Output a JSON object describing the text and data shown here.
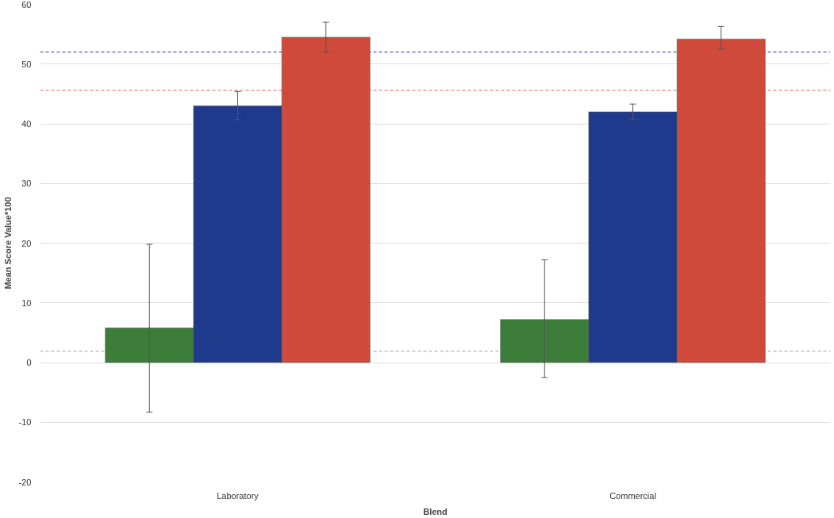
{
  "chart_data": {
    "type": "bar",
    "xlabel": "Blend",
    "ylabel": "Mean Score Value*100",
    "categories": [
      "Laboratory",
      "Commercial"
    ],
    "series": [
      {
        "color": "#3d7d3a",
        "values": [
          5.8,
          7.2
        ],
        "errors": [
          [
            -8.3,
            19.8
          ],
          [
            -2.5,
            17.2
          ]
        ]
      },
      {
        "color": "#1f3a8c",
        "values": [
          43.0,
          42.0
        ],
        "errors": [
          [
            40.7,
            45.4
          ],
          [
            40.7,
            43.3
          ]
        ]
      },
      {
        "color": "#cf4a3a",
        "values": [
          54.5,
          54.2
        ],
        "errors": [
          [
            52.0,
            57.0
          ],
          [
            52.5,
            56.3
          ]
        ]
      }
    ],
    "ref_lines": [
      {
        "axis": "y",
        "value": 52,
        "color": "#5a5aa0",
        "line_style": "dashed"
      },
      {
        "axis": "y",
        "value": 45.6,
        "color": "#e08080",
        "line_style": "dashed"
      },
      {
        "axis": "y",
        "value": 1.9,
        "color": "#b0b0b0",
        "line_style": "dashed"
      }
    ],
    "ylim": [
      -20,
      60
    ],
    "yticks": [
      -20,
      -10,
      0,
      10,
      20,
      30,
      40,
      50,
      60
    ],
    "grid": "y"
  }
}
